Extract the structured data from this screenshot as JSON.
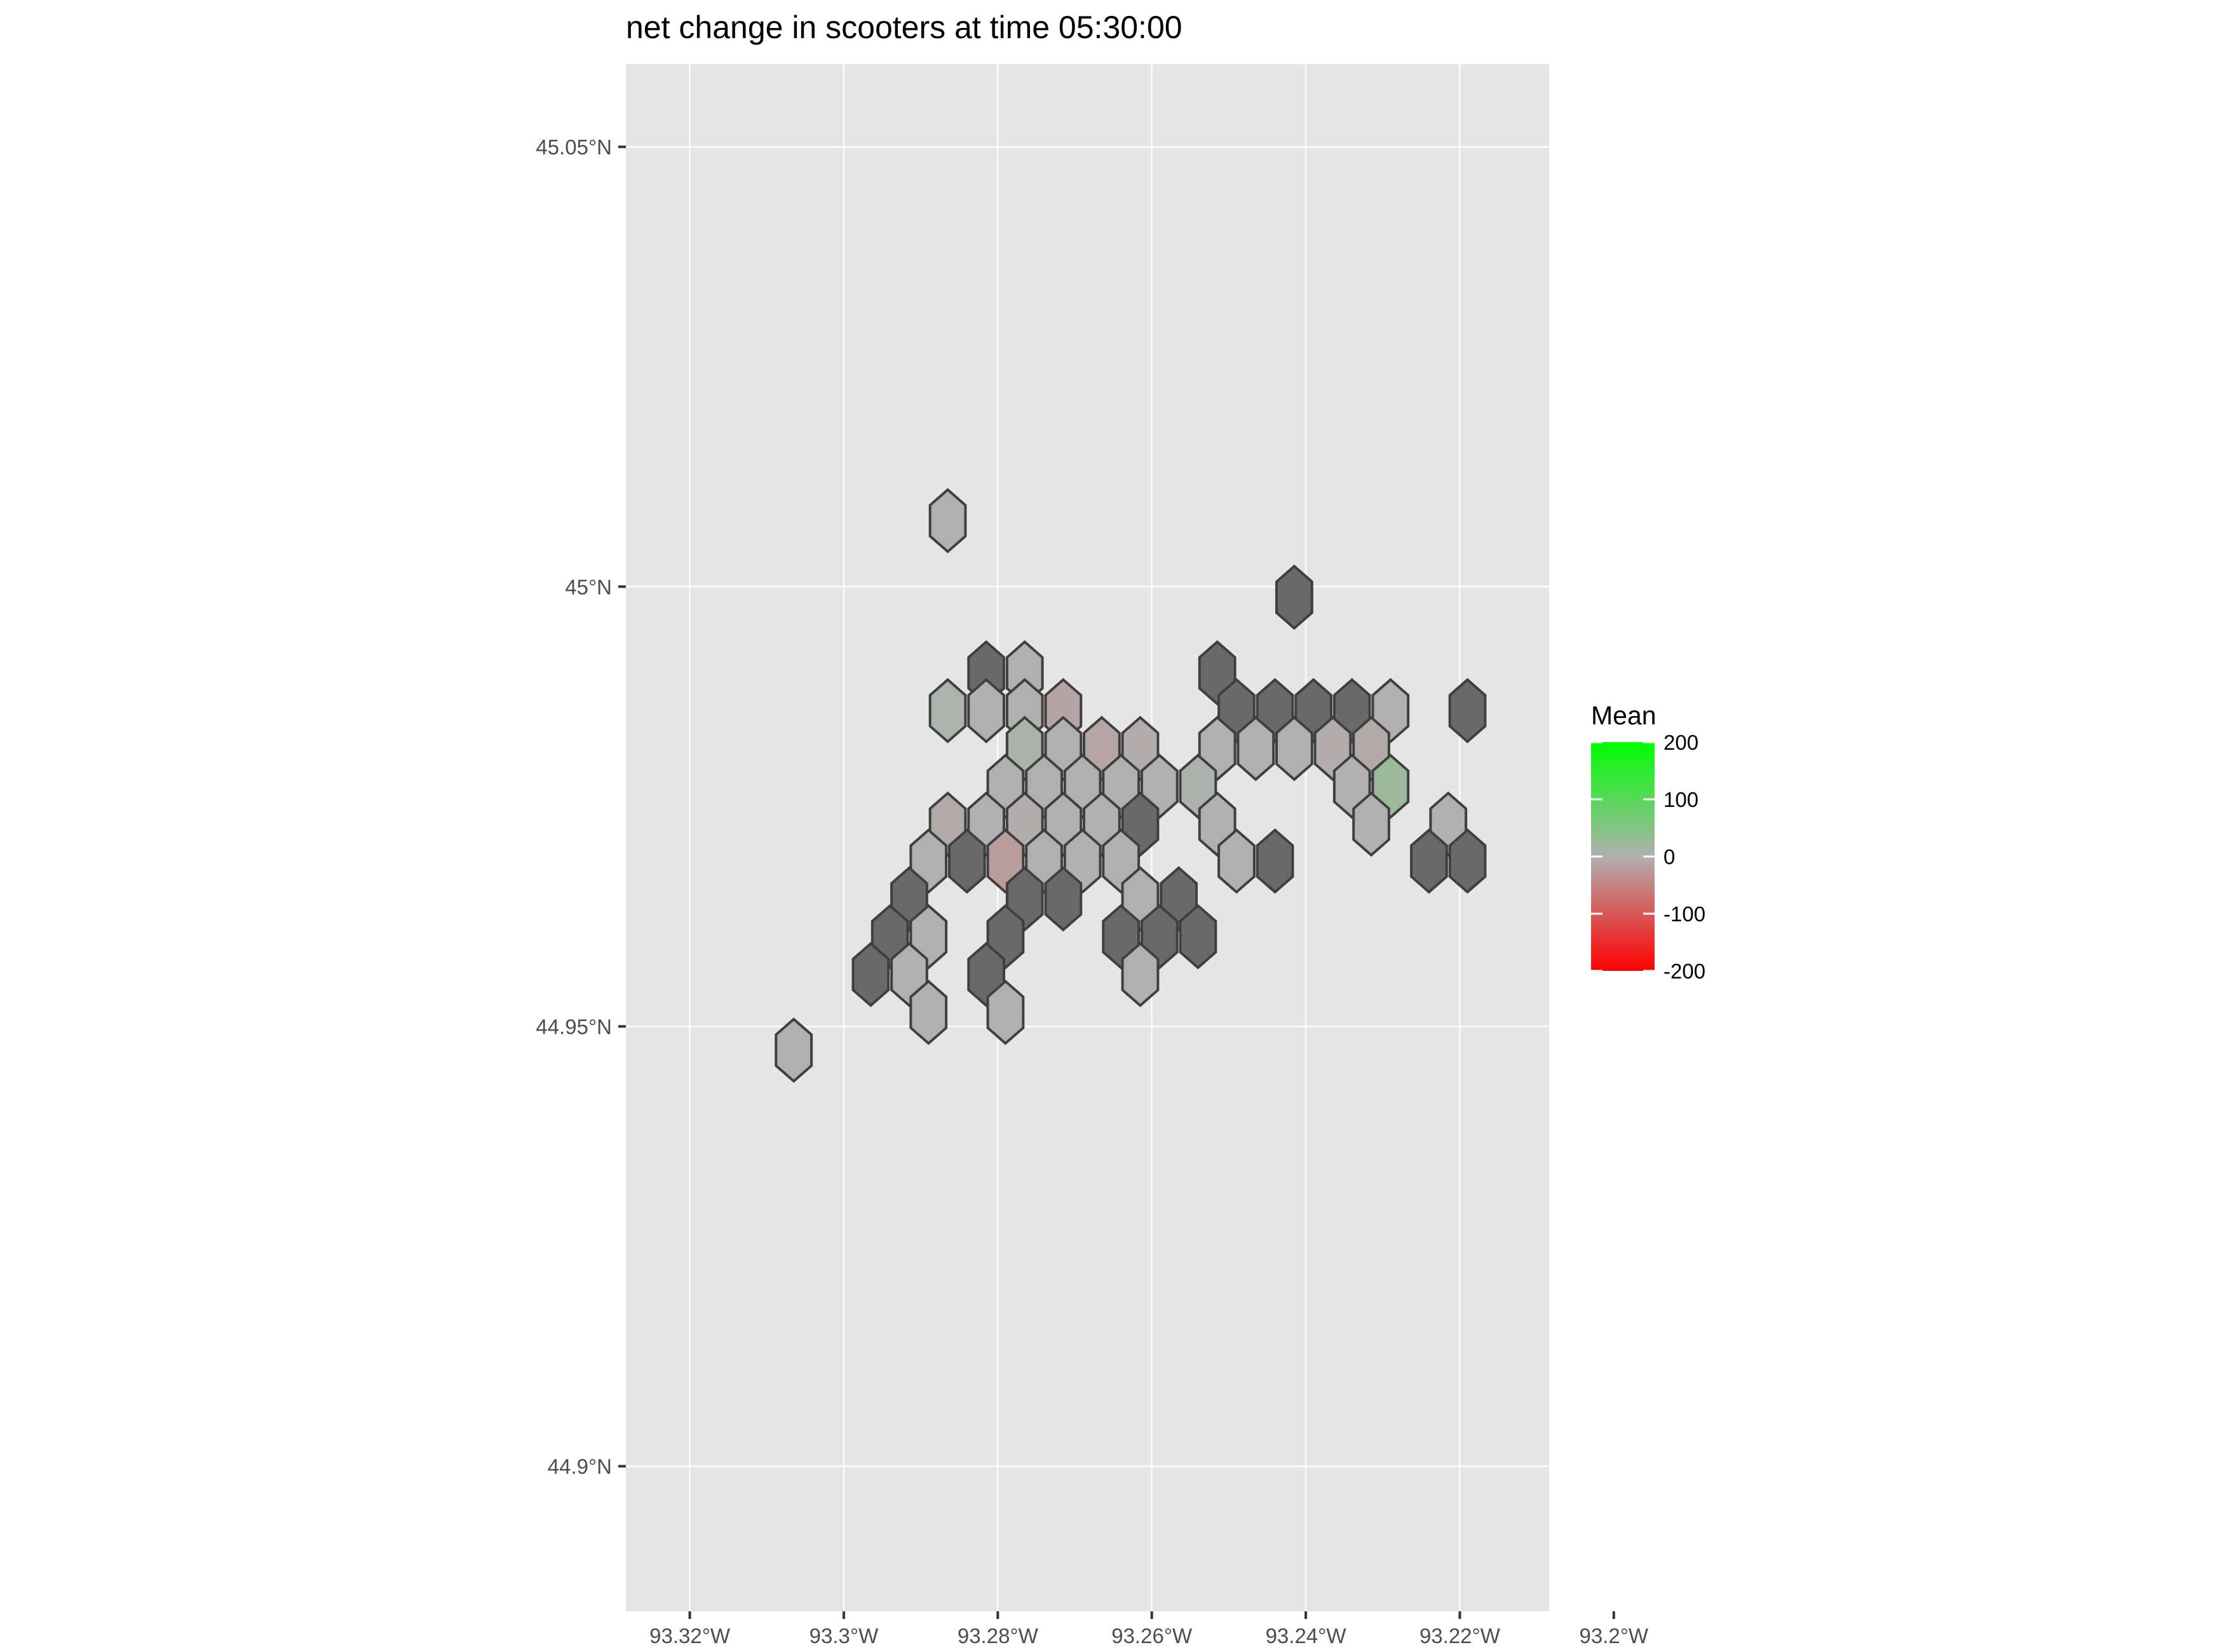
{
  "chart_data": {
    "type": "heatmap",
    "subtype": "hexbin-map",
    "title": "net change in scooters at time 05:30:00",
    "xlabel": "",
    "ylabel": "",
    "xlim": [
      -93.3283,
      -93.2084
    ],
    "ylim": [
      44.8835,
      45.0594
    ],
    "x_ticks": [
      {
        "value": -93.32,
        "label": "93.32°W"
      },
      {
        "value": -93.3,
        "label": "93.3°W"
      },
      {
        "value": -93.28,
        "label": "93.28°W"
      },
      {
        "value": -93.26,
        "label": "93.26°W"
      },
      {
        "value": -93.24,
        "label": "93.24°W"
      },
      {
        "value": -93.22,
        "label": "93.22°W"
      },
      {
        "value": -93.2,
        "label": "93.2°W"
      }
    ],
    "y_ticks": [
      {
        "value": 44.9,
        "label": "44.9°N"
      },
      {
        "value": 44.95,
        "label": "44.95°N"
      },
      {
        "value": 45.0,
        "label": "45°N"
      },
      {
        "value": 45.05,
        "label": "45.05°N"
      }
    ],
    "grid": true,
    "panel_background": "#e5e5e5",
    "legend": {
      "title": "Mean",
      "placement": "right",
      "ticks": [
        {
          "value": 200,
          "label": "200"
        },
        {
          "value": 100,
          "label": "100"
        },
        {
          "value": 0,
          "label": "0"
        },
        {
          "value": -100,
          "label": "-100"
        },
        {
          "value": -200,
          "label": "-200"
        }
      ],
      "range": [
        -200,
        200
      ],
      "colors": {
        "low": "#ff0000",
        "mid": "#b0b0b0",
        "high": "#00ff00"
      }
    },
    "na_color": "#696969",
    "hex_radius": 0.0025,
    "hexes": [
      {
        "lon": -93.2865,
        "lat": 45.0075,
        "value": 0
      },
      {
        "lon": -93.2415,
        "lat": 44.9988,
        "value": null
      },
      {
        "lon": -93.2815,
        "lat": 44.9902,
        "value": null
      },
      {
        "lon": -93.2765,
        "lat": 44.9902,
        "value": 0
      },
      {
        "lon": -93.2515,
        "lat": 44.9902,
        "value": null
      },
      {
        "lon": -93.2865,
        "lat": 44.9859,
        "value": 5
      },
      {
        "lon": -93.2815,
        "lat": 44.9859,
        "value": 0
      },
      {
        "lon": -93.2765,
        "lat": 44.9859,
        "value": 0
      },
      {
        "lon": -93.2715,
        "lat": 44.9859,
        "value": -15
      },
      {
        "lon": -93.249,
        "lat": 44.9859,
        "value": null
      },
      {
        "lon": -93.244,
        "lat": 44.9859,
        "value": null
      },
      {
        "lon": -93.239,
        "lat": 44.9859,
        "value": null
      },
      {
        "lon": -93.234,
        "lat": 44.9859,
        "value": null
      },
      {
        "lon": -93.229,
        "lat": 44.9859,
        "value": 0
      },
      {
        "lon": -93.219,
        "lat": 44.9859,
        "value": null
      },
      {
        "lon": -93.2765,
        "lat": 44.9816,
        "value": 8
      },
      {
        "lon": -93.2715,
        "lat": 44.9816,
        "value": 0
      },
      {
        "lon": -93.2665,
        "lat": 44.9816,
        "value": -12
      },
      {
        "lon": -93.2615,
        "lat": 44.9816,
        "value": -5
      },
      {
        "lon": -93.2515,
        "lat": 44.9816,
        "value": 0
      },
      {
        "lon": -93.2465,
        "lat": 44.9816,
        "value": 0
      },
      {
        "lon": -93.2415,
        "lat": 44.9816,
        "value": 0
      },
      {
        "lon": -93.2365,
        "lat": 44.9816,
        "value": -5
      },
      {
        "lon": -93.2315,
        "lat": 44.9816,
        "value": -8
      },
      {
        "lon": -93.279,
        "lat": 44.9773,
        "value": 0
      },
      {
        "lon": -93.274,
        "lat": 44.9773,
        "value": 0
      },
      {
        "lon": -93.269,
        "lat": 44.9773,
        "value": 0
      },
      {
        "lon": -93.264,
        "lat": 44.9773,
        "value": 0
      },
      {
        "lon": -93.259,
        "lat": 44.9773,
        "value": 0
      },
      {
        "lon": -93.254,
        "lat": 44.9773,
        "value": 3
      },
      {
        "lon": -93.234,
        "lat": 44.9773,
        "value": 0
      },
      {
        "lon": -93.229,
        "lat": 44.9773,
        "value": 25
      },
      {
        "lon": -93.2865,
        "lat": 44.973,
        "value": -8
      },
      {
        "lon": -93.2815,
        "lat": 44.973,
        "value": 0
      },
      {
        "lon": -93.2765,
        "lat": 44.973,
        "value": -3
      },
      {
        "lon": -93.2715,
        "lat": 44.973,
        "value": 0
      },
      {
        "lon": -93.2665,
        "lat": 44.973,
        "value": 0
      },
      {
        "lon": -93.2615,
        "lat": 44.973,
        "value": null
      },
      {
        "lon": -93.2515,
        "lat": 44.973,
        "value": 0
      },
      {
        "lon": -93.2315,
        "lat": 44.973,
        "value": 0
      },
      {
        "lon": -93.2215,
        "lat": 44.973,
        "value": 0
      },
      {
        "lon": -93.289,
        "lat": 44.9688,
        "value": 0
      },
      {
        "lon": -93.284,
        "lat": 44.9688,
        "value": null
      },
      {
        "lon": -93.279,
        "lat": 44.9688,
        "value": -22
      },
      {
        "lon": -93.274,
        "lat": 44.9688,
        "value": 0
      },
      {
        "lon": -93.269,
        "lat": 44.9688,
        "value": 0
      },
      {
        "lon": -93.264,
        "lat": 44.9688,
        "value": 0
      },
      {
        "lon": -93.249,
        "lat": 44.9688,
        "value": 0
      },
      {
        "lon": -93.244,
        "lat": 44.9688,
        "value": null
      },
      {
        "lon": -93.224,
        "lat": 44.9688,
        "value": null
      },
      {
        "lon": -93.219,
        "lat": 44.9688,
        "value": null
      },
      {
        "lon": -93.2915,
        "lat": 44.9645,
        "value": null
      },
      {
        "lon": -93.2765,
        "lat": 44.9645,
        "value": null
      },
      {
        "lon": -93.2715,
        "lat": 44.9645,
        "value": null
      },
      {
        "lon": -93.2615,
        "lat": 44.9645,
        "value": 0
      },
      {
        "lon": -93.2565,
        "lat": 44.9645,
        "value": null
      },
      {
        "lon": -93.294,
        "lat": 44.9602,
        "value": null
      },
      {
        "lon": -93.289,
        "lat": 44.9602,
        "value": 0
      },
      {
        "lon": -93.279,
        "lat": 44.9602,
        "value": null
      },
      {
        "lon": -93.264,
        "lat": 44.9602,
        "value": null
      },
      {
        "lon": -93.259,
        "lat": 44.9602,
        "value": null
      },
      {
        "lon": -93.254,
        "lat": 44.9602,
        "value": null
      },
      {
        "lon": -93.2965,
        "lat": 44.9559,
        "value": null
      },
      {
        "lon": -93.2915,
        "lat": 44.9559,
        "value": 0
      },
      {
        "lon": -93.2815,
        "lat": 44.9559,
        "value": null
      },
      {
        "lon": -93.2615,
        "lat": 44.9559,
        "value": 0
      },
      {
        "lon": -93.289,
        "lat": 44.9516,
        "value": 0
      },
      {
        "lon": -93.279,
        "lat": 44.9516,
        "value": 0
      },
      {
        "lon": -93.3065,
        "lat": 44.9473,
        "value": 0
      }
    ]
  }
}
